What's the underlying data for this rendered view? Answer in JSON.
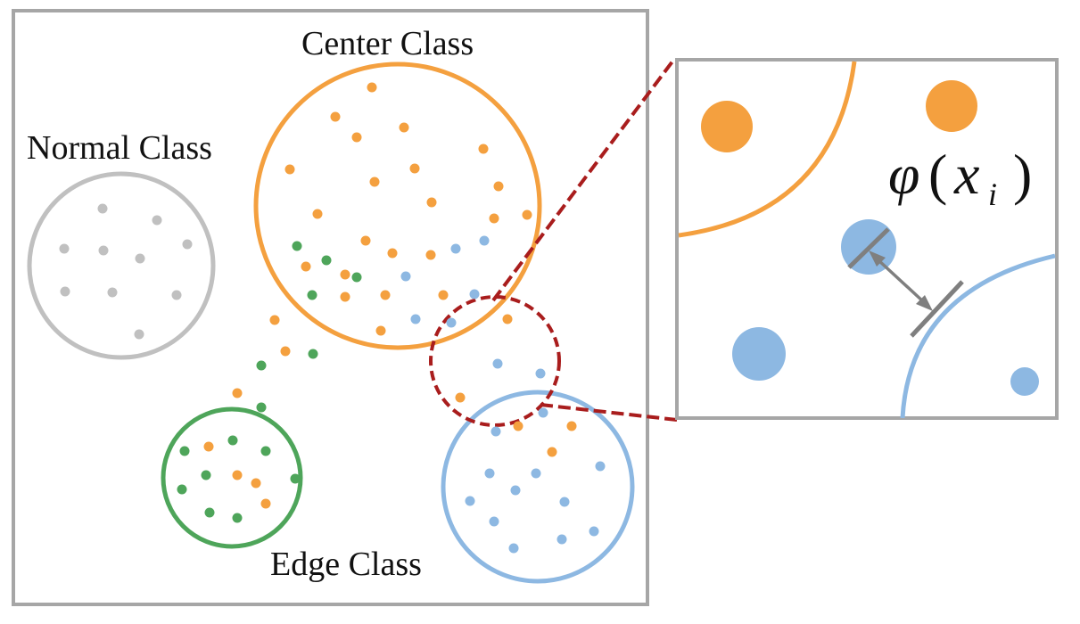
{
  "labels": {
    "center": "Center Class",
    "normal": "Normal Class",
    "edge": "Edge Class"
  },
  "formula": {
    "phi": "φ",
    "open_paren": "(",
    "var": "x",
    "subscript": "i",
    "close_paren": ")"
  },
  "colors": {
    "frame": "#a6a6a6",
    "orange": "#f4a03f",
    "blue": "#8db8e2",
    "green": "#4ea55a",
    "gray": "#c0c0c0",
    "highlight": "#a91d1d",
    "arrow": "#7f7f7f"
  }
}
